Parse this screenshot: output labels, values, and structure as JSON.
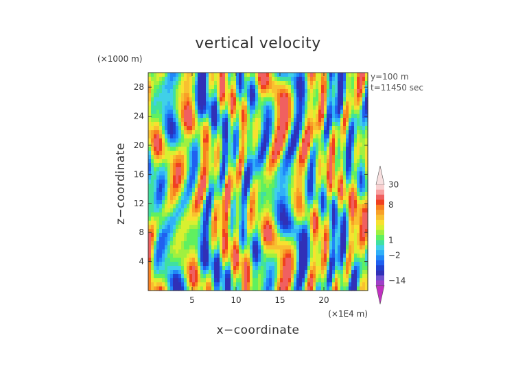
{
  "chart_data": {
    "type": "heatmap",
    "title": "vertical velocity",
    "xlabel": "x−coordinate",
    "ylabel": "z−coordinate",
    "x_unit": "(×1E4 m)",
    "y_unit": "(×1000 m)",
    "xlim": [
      0,
      25
    ],
    "ylim": [
      0,
      30
    ],
    "x_ticks": [
      "5",
      "10",
      "15",
      "20"
    ],
    "y_ticks": [
      "4",
      "8",
      "12",
      "16",
      "20",
      "24",
      "28"
    ],
    "annotations": [
      "y=100 m",
      "t=11450 sec"
    ],
    "colorbar": {
      "levels": [
        -18,
        -14,
        -10,
        -6,
        -4,
        -3,
        -2,
        -1,
        0,
        1,
        2,
        3,
        4,
        5,
        6,
        7,
        8,
        12,
        16,
        20,
        30
      ],
      "colors": [
        "#c030c0",
        "#a040c8",
        "#7050d0",
        "#3030b8",
        "#2040d0",
        "#2060f0",
        "#2088f8",
        "#30b0f8",
        "#40d0e8",
        "#40e0a0",
        "#60f060",
        "#a0f040",
        "#d8f030",
        "#f8e030",
        "#f8c030",
        "#f8a028",
        "#f88020",
        "#f04020",
        "#f06060",
        "#f8a0a0",
        "#f8d0d0",
        "#f8e0e0"
      ],
      "labels": [
        "30",
        "8",
        "1",
        "−2",
        "−14"
      ]
    }
  }
}
